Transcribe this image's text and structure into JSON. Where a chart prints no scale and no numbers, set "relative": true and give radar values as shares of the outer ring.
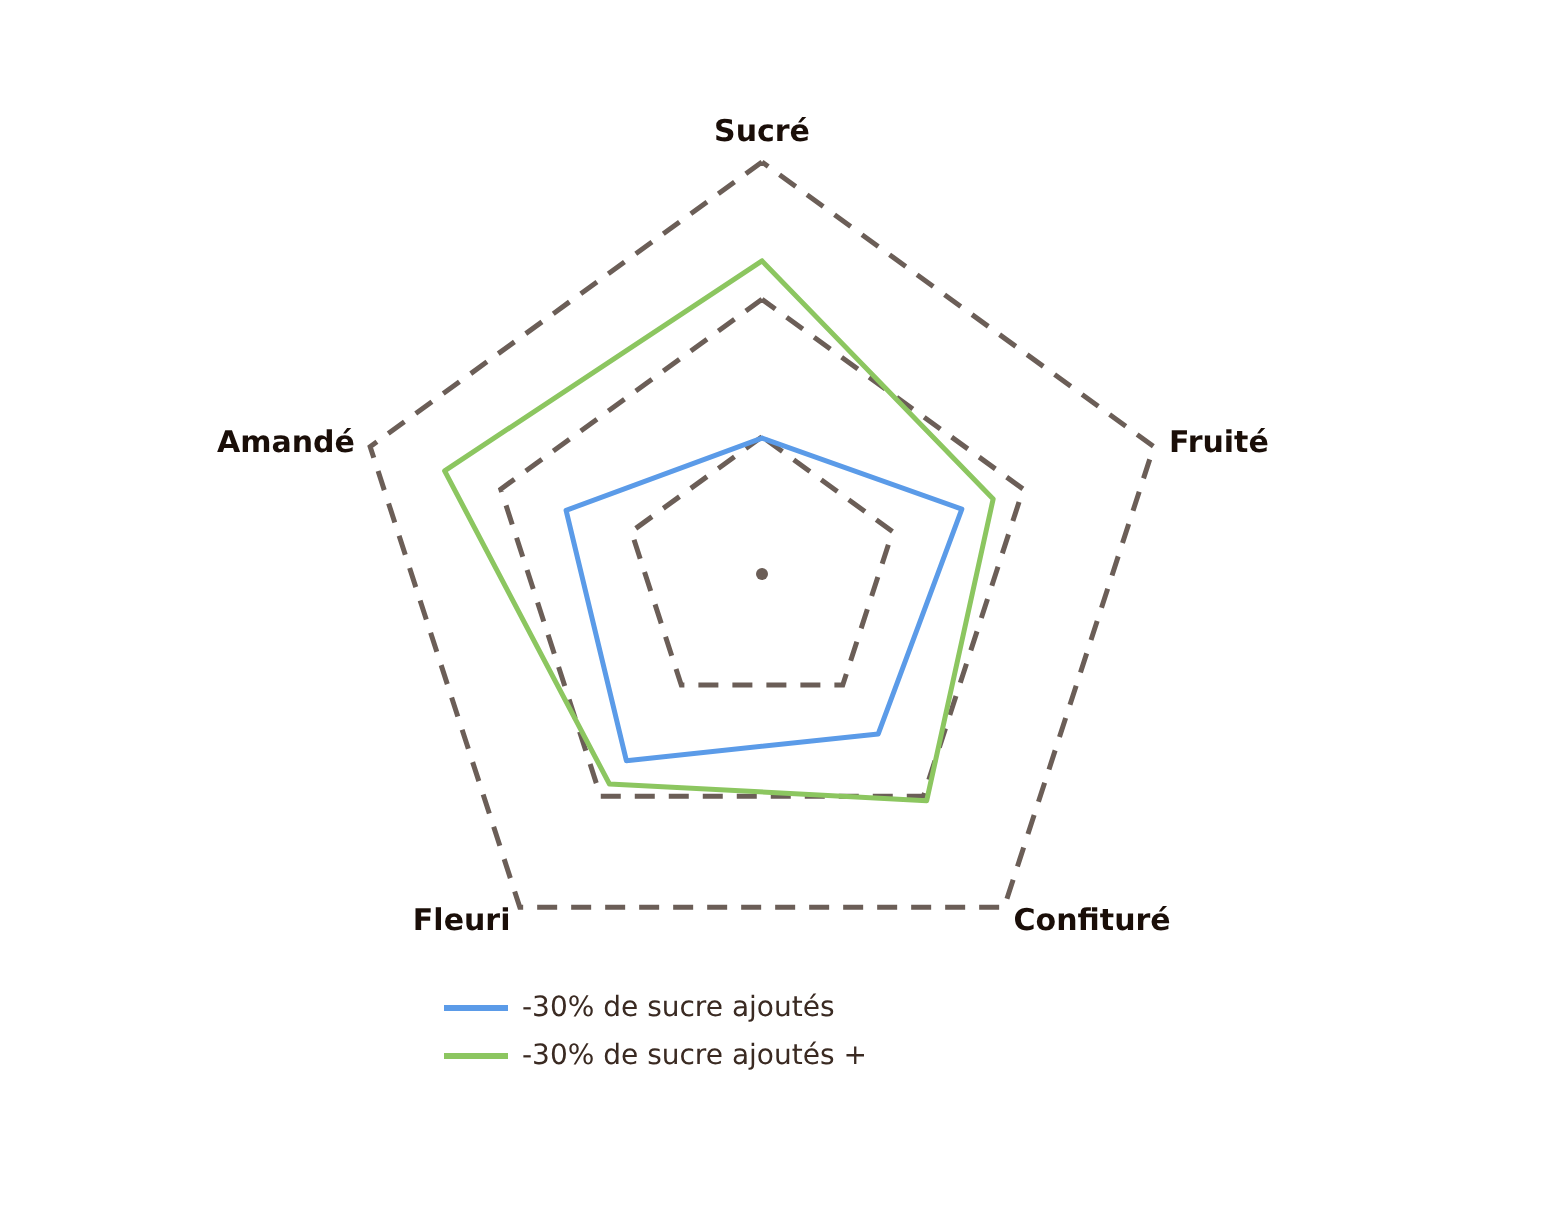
{
  "chart_data": {
    "type": "radar",
    "relative": true,
    "categories": [
      "Sucré",
      "Fruité",
      "Confituré",
      "Fleuri",
      "Amandé"
    ],
    "series": [
      {
        "name": "-30% de sucre ajoutés",
        "color": "#5b9be8",
        "values": [
          0.33,
          0.51,
          0.48,
          0.56,
          0.5
        ]
      },
      {
        "name": "-30% de sucre ajoutés +",
        "color": "#8cc660",
        "values": [
          0.76,
          0.59,
          0.68,
          0.63,
          0.81
        ]
      }
    ],
    "grid": true,
    "legend": "bottom",
    "marker": "none",
    "line_style": "solid"
  }
}
